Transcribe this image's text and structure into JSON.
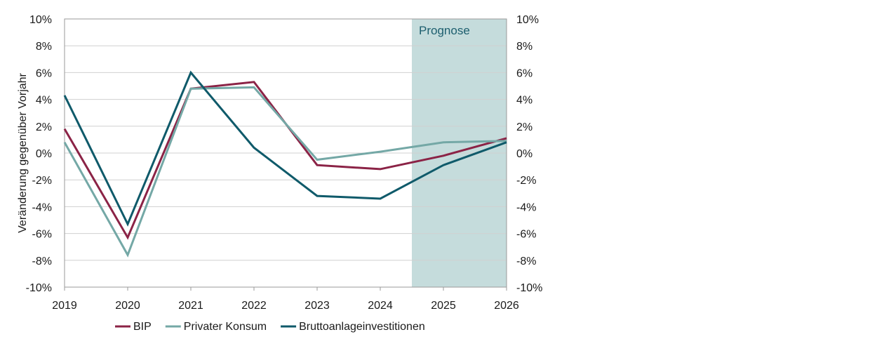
{
  "chart_data": {
    "type": "line",
    "x": [
      "2019",
      "2020",
      "2021",
      "2022",
      "2023",
      "2024",
      "2025",
      "2026"
    ],
    "series": [
      {
        "name": "BIP",
        "color": "#8b2346",
        "values": [
          1.8,
          -6.3,
          4.8,
          5.3,
          -0.9,
          -1.2,
          -0.2,
          1.1
        ]
      },
      {
        "name": "Privater Konsum",
        "color": "#74a8a6",
        "values": [
          0.8,
          -7.6,
          4.8,
          4.9,
          -0.5,
          0.1,
          0.8,
          0.9
        ]
      },
      {
        "name": "Bruttoanlageinvestitionen",
        "color": "#0f5a6a",
        "values": [
          4.3,
          -5.3,
          6.0,
          0.4,
          -3.2,
          -3.4,
          -0.9,
          0.8
        ]
      }
    ],
    "ylabel": "Veränderung gegenüber Vorjahr",
    "xlabel": "",
    "ylim": [
      -10,
      10
    ],
    "yticks": [
      "-10%",
      "-8%",
      "-6%",
      "-4%",
      "-2%",
      "0%",
      "2%",
      "4%",
      "6%",
      "8%",
      "10%"
    ],
    "ytick_values": [
      -10,
      -8,
      -6,
      -4,
      -2,
      0,
      2,
      4,
      6,
      8,
      10
    ],
    "secondary_y_axis": true,
    "grid": true,
    "legend_position": "bottom",
    "forecast_band": {
      "label": "Prognose",
      "from": 5.5,
      "to": 7,
      "color": "#c5dcdc",
      "label_color": "#1c5e6e"
    }
  }
}
